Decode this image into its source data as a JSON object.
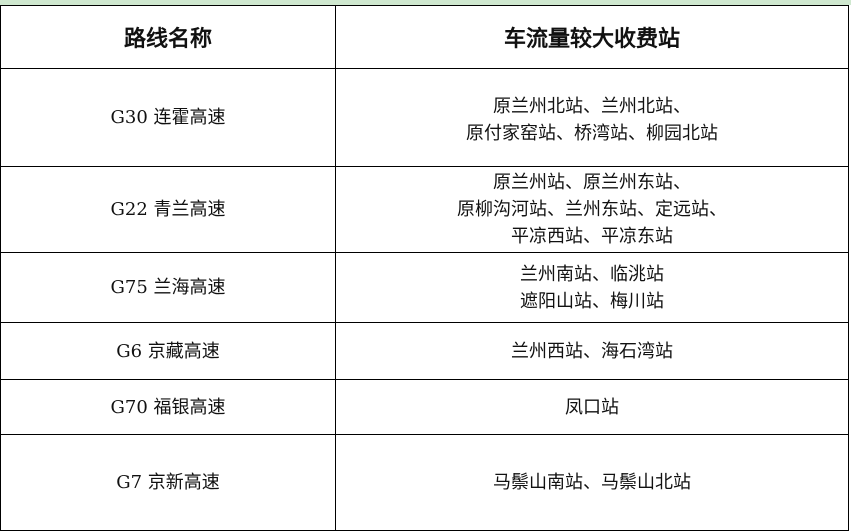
{
  "header": {
    "col_route": "路线名称",
    "col_stations": "车流量较大收费站"
  },
  "rows": [
    {
      "route": "G30 连霍高速",
      "stations": [
        "原兰州北站、兰州北站、",
        "原付家窑站、桥湾站、柳园北站"
      ]
    },
    {
      "route": "G22 青兰高速",
      "stations": [
        "原兰州站、原兰州东站、",
        "原柳沟河站、兰州东站、定远站、",
        "平凉西站、平凉东站"
      ]
    },
    {
      "route": "G75 兰海高速",
      "stations": [
        "兰州南站、临洮站",
        "遮阳山站、梅川站"
      ]
    },
    {
      "route": "G6 京藏高速",
      "stations": [
        "兰州西站、海石湾站"
      ]
    },
    {
      "route": "G70 福银高速",
      "stations": [
        "凤口站"
      ]
    },
    {
      "route": "G7 京新高速",
      "stations": [
        "马鬃山南站、马鬃山北站"
      ]
    }
  ]
}
